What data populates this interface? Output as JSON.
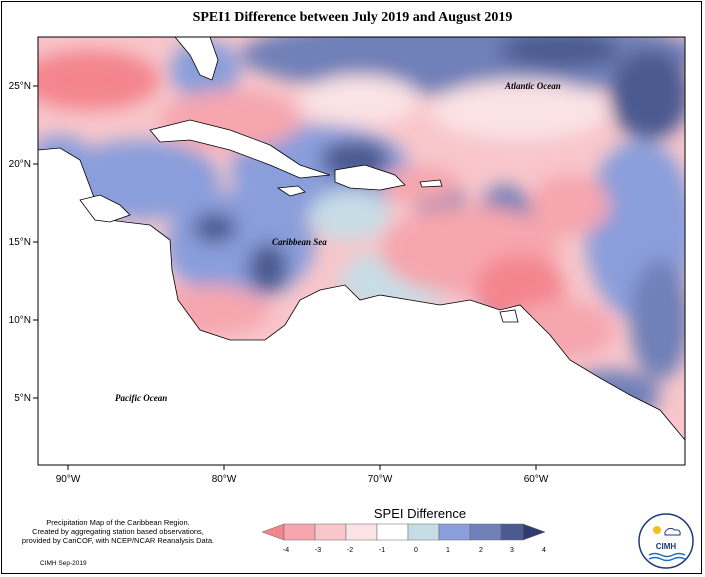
{
  "title": "SPEI1 Difference between July 2019 and August 2019",
  "map": {
    "lat_ticks": [
      "25°N",
      "20°N",
      "15°N",
      "10°N",
      "5°N"
    ],
    "lon_ticks": [
      "90°W",
      "80°W",
      "70°W",
      "60°W"
    ],
    "labels": {
      "atlantic": "Atlantic Ocean",
      "caribbean": "Caribbean Sea",
      "pacific": "Pacific Ocean"
    }
  },
  "colorbar": {
    "title": "SPEI Difference",
    "ticks": [
      "-4",
      "-3",
      "-2",
      "-1",
      "0",
      "1",
      "2",
      "3",
      "4"
    ],
    "colors": [
      "#f4858e",
      "#f6a6ae",
      "#f8c6cb",
      "#fbe3e5",
      "#c7dde6",
      "#8a9edb",
      "#7080b8",
      "#4c5a91"
    ]
  },
  "footnote": {
    "lines": [
      "Precipitation Map of the Caribbean Region.",
      "Created by aggregating station based observations,",
      "provided by CariCOF, with NCEP/NCAR Reanalysis Data."
    ],
    "credit": "CIMH Sep-2019"
  },
  "logo": {
    "text": "CIMH"
  }
}
